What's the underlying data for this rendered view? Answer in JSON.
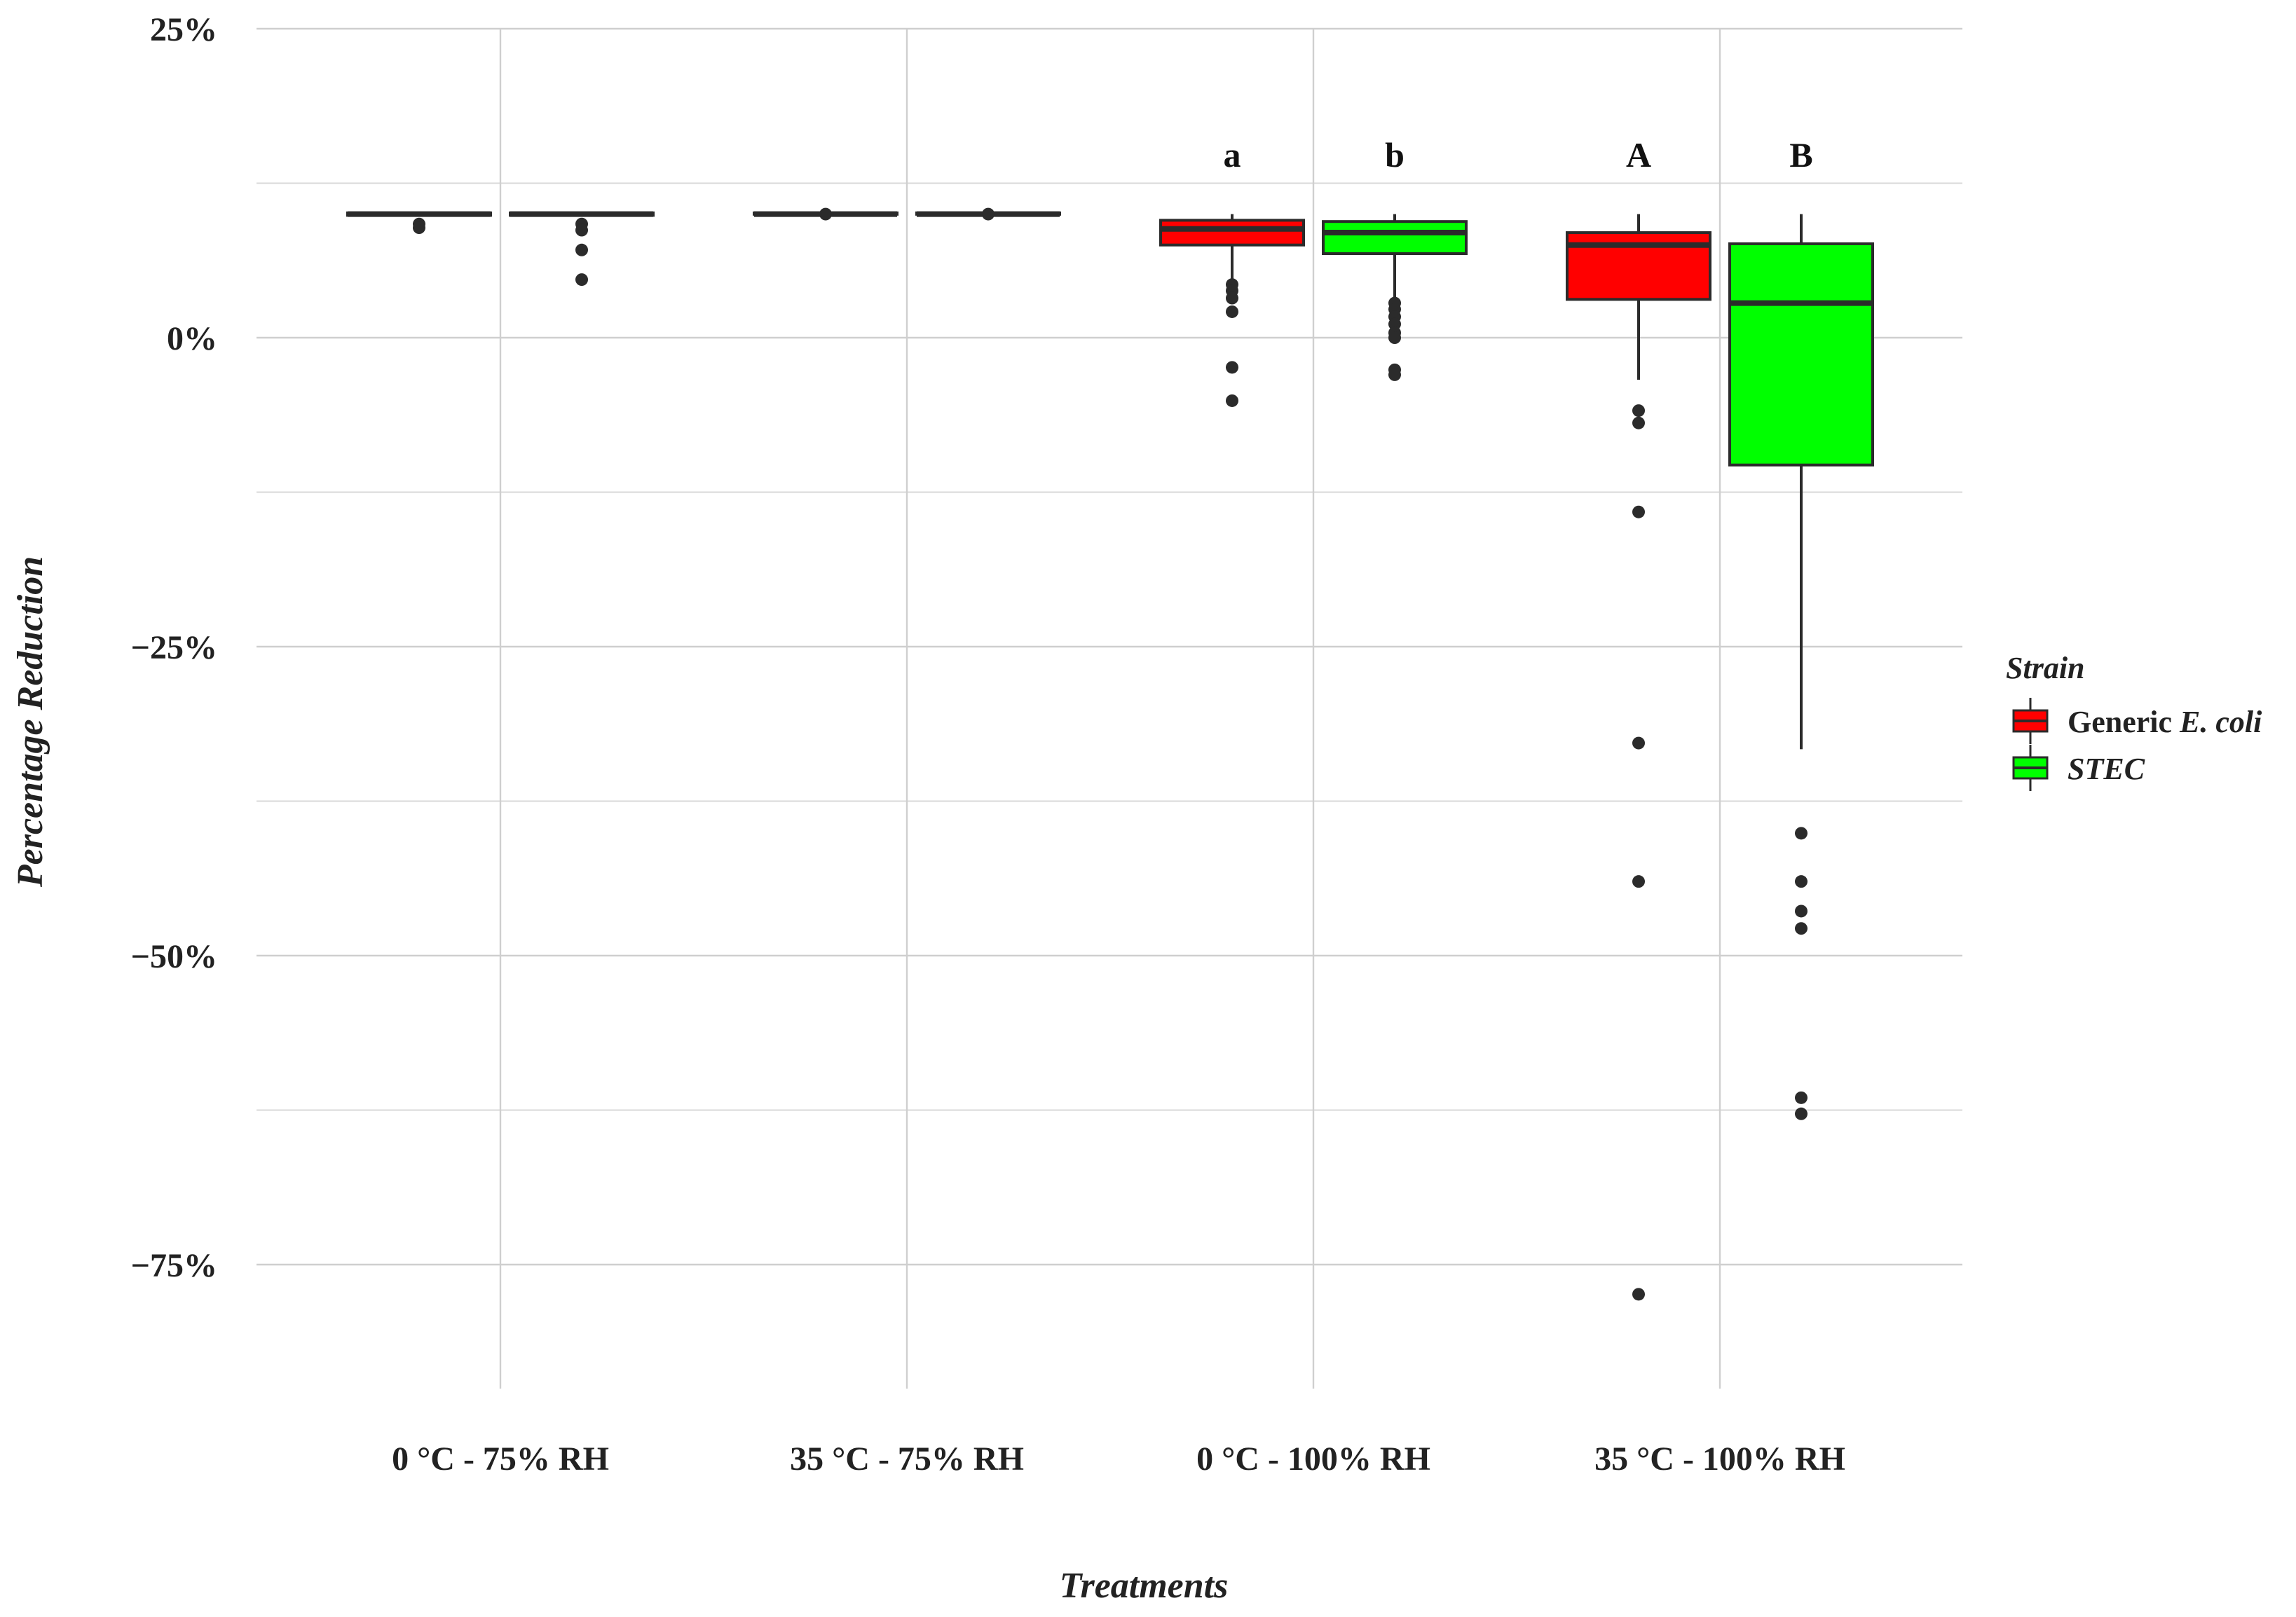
{
  "chart_data": {
    "type": "box",
    "xlabel": "Treatments",
    "ylabel": "Percentage Reduction",
    "ylim": [
      -85,
      25
    ],
    "y_ticks": [
      25,
      0,
      -25,
      -50,
      -75
    ],
    "y_tick_labels": [
      "25%",
      "0%",
      "−25%",
      "−50%",
      "−75%"
    ],
    "grid": true,
    "legend": {
      "title": "Strain",
      "position": "right",
      "entries": [
        {
          "key": "generic",
          "label_prefix": "Generic ",
          "label_italic": "E. coli",
          "color": "#ff0000"
        },
        {
          "key": "stec",
          "label_prefix": "",
          "label_italic": "STEC",
          "color": "#00ff00"
        }
      ]
    },
    "categories": [
      "0 °C - 75% RH",
      "35 °C - 75% RH",
      "0 °C - 100% RH",
      "35 °C - 100% RH"
    ],
    "series": [
      {
        "name": "Generic E. coli",
        "color": "#ff0000",
        "boxes": [
          {
            "q1": 9.9,
            "median": 10.0,
            "q3": 10.1,
            "whisker_low": 9.9,
            "whisker_high": 10.1,
            "outliers": [
              9.2,
              8.9
            ]
          },
          {
            "q1": 10.0,
            "median": 10.0,
            "q3": 10.1,
            "whisker_low": 10.0,
            "whisker_high": 10.1,
            "outliers": [
              10.0
            ]
          },
          {
            "q1": 7.5,
            "median": 8.8,
            "q3": 9.5,
            "whisker_low": 4.7,
            "whisker_high": 10.0,
            "outliers": [
              4.3,
              3.8,
              3.2,
              2.1,
              -2.4,
              -5.1
            ]
          },
          {
            "q1": 3.1,
            "median": 7.5,
            "q3": 8.5,
            "whisker_low": -3.4,
            "whisker_high": 10.0,
            "outliers": [
              -5.9,
              -6.9,
              -14.1,
              -32.8,
              -44.0,
              -77.4
            ]
          }
        ]
      },
      {
        "name": "STEC",
        "color": "#00ff00",
        "boxes": [
          {
            "q1": 9.9,
            "median": 10.0,
            "q3": 10.1,
            "whisker_low": 9.9,
            "whisker_high": 10.1,
            "outliers": [
              9.2,
              8.7,
              7.1,
              4.7
            ]
          },
          {
            "q1": 10.0,
            "median": 10.0,
            "q3": 10.1,
            "whisker_low": 10.0,
            "whisker_high": 10.1,
            "outliers": [
              10.0
            ]
          },
          {
            "q1": 6.8,
            "median": 8.5,
            "q3": 9.4,
            "whisker_low": 3.0,
            "whisker_high": 10.0,
            "outliers": [
              2.8,
              2.3,
              1.7,
              1.1,
              0.4,
              0.0,
              -2.6,
              -3.0
            ]
          },
          {
            "q1": -10.3,
            "median": 2.8,
            "q3": 7.6,
            "whisker_low": -33.3,
            "whisker_high": 10.0,
            "outliers": [
              -40.1,
              -44.0,
              -46.4,
              -47.8,
              -61.5,
              -62.8
            ]
          }
        ]
      }
    ],
    "annotations": [
      {
        "category": 2,
        "series": 0,
        "text": "a"
      },
      {
        "category": 2,
        "series": 1,
        "text": "b"
      },
      {
        "category": 3,
        "series": 0,
        "text": "A"
      },
      {
        "category": 3,
        "series": 1,
        "text": "B"
      }
    ]
  }
}
